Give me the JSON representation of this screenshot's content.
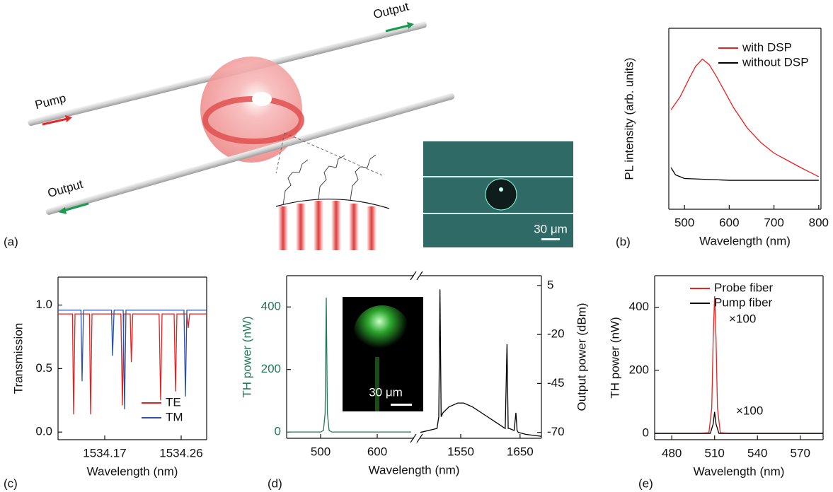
{
  "illustration": {
    "panel_label": "(a)",
    "labels": [
      "Pump",
      "Output",
      "Output"
    ],
    "scale_bar": "30 μm"
  },
  "chart_data": [
    {
      "type": "line",
      "panel_label": "(b)",
      "xlabel": "Wavelength (nm)",
      "ylabel": "PL intensity (arb. units)",
      "xlim": [
        465,
        805
      ],
      "xticks": [
        500,
        600,
        700,
        800
      ],
      "ylim": [
        0,
        1
      ],
      "legend": "upper right",
      "series": [
        {
          "name": "with DSP",
          "color": "#e8221f",
          "x": [
            470,
            490,
            510,
            525,
            540,
            555,
            570,
            590,
            610,
            640,
            670,
            700,
            730,
            760,
            800
          ],
          "values": [
            0.55,
            0.62,
            0.72,
            0.79,
            0.83,
            0.8,
            0.74,
            0.65,
            0.56,
            0.45,
            0.37,
            0.31,
            0.27,
            0.23,
            0.18
          ]
        },
        {
          "name": "without DSP",
          "color": "#000000",
          "x": [
            470,
            480,
            500,
            600,
            700,
            800
          ],
          "values": [
            0.23,
            0.19,
            0.17,
            0.16,
            0.16,
            0.16
          ]
        }
      ]
    },
    {
      "type": "line",
      "panel_label": "(c)",
      "xlabel": "Wavelength (nm)",
      "ylabel": "Transmission",
      "xlim": [
        1534.115,
        1534.29
      ],
      "xticks": [
        1534.17,
        1534.26
      ],
      "ylim": [
        -0.06,
        1.22
      ],
      "yticks": [
        {
          "value": 0,
          "label": "0.0"
        },
        0.5,
        {
          "value": 1,
          "label": "1.0"
        }
      ],
      "legend": "lower right",
      "series": [
        {
          "name": "TE",
          "color": "#e8221f",
          "x": [
            1534.115,
            1534.132,
            1534.1333,
            1534.135,
            1534.152,
            1534.1533,
            1534.155,
            1534.189,
            1534.1908,
            1534.1925,
            1534.2,
            1534.2013,
            1534.203,
            1534.234,
            1534.2358,
            1534.2375,
            1534.2517,
            1534.2533,
            1534.255,
            1534.2667,
            1534.2683,
            1534.27,
            1534.29
          ],
          "values": [
            0.93,
            0.93,
            0.14,
            0.93,
            0.93,
            0.14,
            0.93,
            0.93,
            0.21,
            0.93,
            0.93,
            0.55,
            0.93,
            0.93,
            0.25,
            0.93,
            0.93,
            0.32,
            0.93,
            0.93,
            0.82,
            0.93,
            0.93
          ]
        },
        {
          "name": "TM",
          "color": "#2b4fa8",
          "x": [
            1534.115,
            1534.142,
            1534.1433,
            1534.145,
            1534.178,
            1534.1792,
            1534.181,
            1534.1917,
            1534.1933,
            1534.195,
            1534.2633,
            1534.265,
            1534.2667,
            1534.29
          ],
          "values": [
            0.96,
            0.96,
            0.4,
            0.96,
            0.96,
            0.6,
            0.96,
            0.96,
            0.18,
            0.96,
            0.96,
            0.28,
            0.96,
            0.96
          ]
        }
      ]
    },
    {
      "type": "line",
      "panel_label": "(d)",
      "xlabel": "Wavelength (nm)",
      "ylabel": "TH power (nW)",
      "ylabel_color": "#1f7a55",
      "y2label": "Output power (dBm)",
      "inset_scale_bar": "30 μm",
      "xlim": [
        440,
        665
      ],
      "xticks": [
        500,
        600
      ],
      "x2lim": [
        1482,
        1686
      ],
      "x2ticks": [
        1550,
        1650
      ],
      "ylim": [
        -20,
        500
      ],
      "yticks": [
        0,
        200,
        400
      ],
      "y2lim": [
        -73,
        10
      ],
      "y2ticks": [
        5,
        -20,
        -45,
        -70
      ],
      "series": [
        {
          "color": "#1f7a55",
          "x": [
            440,
            500,
            505,
            508,
            510,
            512,
            515,
            520,
            660
          ],
          "values": [
            0,
            0,
            5,
            60,
            430,
            60,
            5,
            0,
            0
          ]
        },
        {
          "color": "#000000",
          "axis": "y2",
          "xaxis": "x2",
          "x": [
            1482,
            1510,
            1513,
            1515,
            1517,
            1520,
            1530,
            1545,
            1555,
            1570,
            1590,
            1610,
            1625,
            1628,
            1630,
            1632,
            1640,
            1643,
            1645,
            1647,
            1660,
            1686
          ],
          "values": [
            -70,
            -68,
            -62,
            3,
            -62,
            -60,
            -57,
            -55,
            -55,
            -57,
            -61,
            -65,
            -68,
            -25,
            -68,
            -68,
            -69,
            -60,
            -69,
            -70,
            -71,
            -72
          ]
        }
      ]
    },
    {
      "type": "line",
      "panel_label": "(e)",
      "xlabel": "Wavelength (nm)",
      "ylabel": "TH power (nW)",
      "xlim": [
        468,
        586
      ],
      "xticks": [
        480,
        510,
        540,
        570
      ],
      "ylim": [
        -20,
        500
      ],
      "yticks": [
        0,
        200,
        400
      ],
      "legend": "upper right",
      "annotations": [
        "×100",
        "×100"
      ],
      "series": [
        {
          "name": "Probe fiber",
          "color": "#e8221f",
          "x": [
            468,
            500,
            506,
            508,
            509,
            510,
            511,
            512,
            514,
            520,
            586
          ],
          "values": [
            0,
            0,
            2,
            80,
            300,
            435,
            300,
            80,
            2,
            0,
            0
          ]
        },
        {
          "name": "Pump fiber",
          "color": "#000000",
          "x": [
            468,
            507,
            509,
            510,
            511,
            513,
            586
          ],
          "values": [
            0,
            0,
            30,
            68,
            30,
            0,
            0
          ]
        }
      ]
    }
  ]
}
